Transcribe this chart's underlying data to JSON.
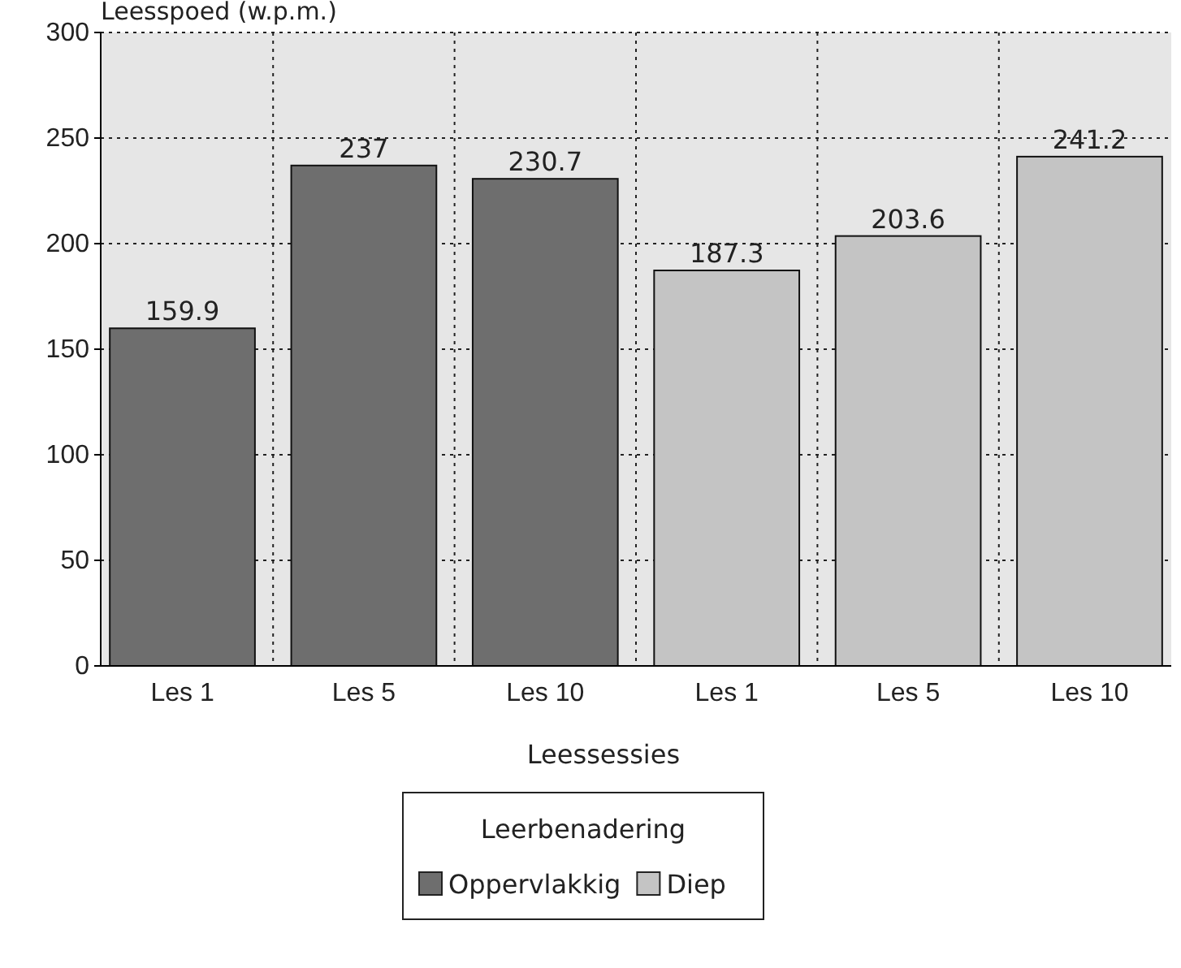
{
  "chart_data": {
    "type": "bar",
    "categories": [
      "Les 1",
      "Les 5",
      "Les 10",
      "Les 1",
      "Les 5",
      "Les 10"
    ],
    "series": [
      {
        "name": "Oppervlakkig",
        "color": "#6e6e6e",
        "values": [
          159.9,
          237,
          230.7,
          null,
          null,
          null
        ]
      },
      {
        "name": "Diep",
        "color": "#c4c4c4",
        "values": [
          null,
          null,
          null,
          187.3,
          203.6,
          241.2
        ]
      }
    ],
    "ylabel": "Leesspoed (w.p.m.)",
    "xlabel": "Leessessies",
    "legend_title": "Leerbenadering",
    "ylim": [
      0,
      300
    ],
    "yticks": [
      0,
      50,
      100,
      150,
      200,
      250,
      300
    ],
    "grid": true,
    "legend": "bottom",
    "data_labels": true
  }
}
